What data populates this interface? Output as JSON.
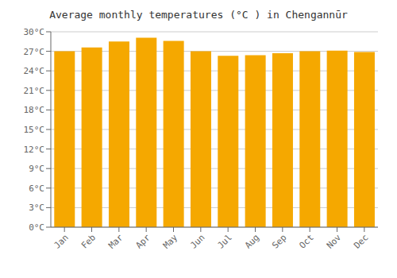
{
  "chart_data": {
    "type": "bar",
    "title": "Average monthly temperatures (°C ) in Chengannūr",
    "categories": [
      "Jan",
      "Feb",
      "Mar",
      "Apr",
      "May",
      "Jun",
      "Jul",
      "Aug",
      "Sep",
      "Oct",
      "Nov",
      "Dec"
    ],
    "values": [
      27.0,
      27.6,
      28.5,
      29.1,
      28.6,
      27.0,
      26.3,
      26.4,
      26.7,
      27.0,
      27.1,
      26.9
    ],
    "color": "#F5A800",
    "ylim": [
      0,
      30
    ],
    "yticks": [
      {
        "value": 0,
        "label": "0°C"
      },
      {
        "value": 3,
        "label": "3°C"
      },
      {
        "value": 6,
        "label": "6°C"
      },
      {
        "value": 9,
        "label": "9°C"
      },
      {
        "value": 12,
        "label": "12°C"
      },
      {
        "value": 15,
        "label": "15°C"
      },
      {
        "value": 18,
        "label": "18°C"
      },
      {
        "value": 21,
        "label": "21°C"
      },
      {
        "value": 24,
        "label": "24°C"
      },
      {
        "value": 27,
        "label": "27°C"
      },
      {
        "value": 30,
        "label": "30°C"
      }
    ],
    "grid": true
  }
}
